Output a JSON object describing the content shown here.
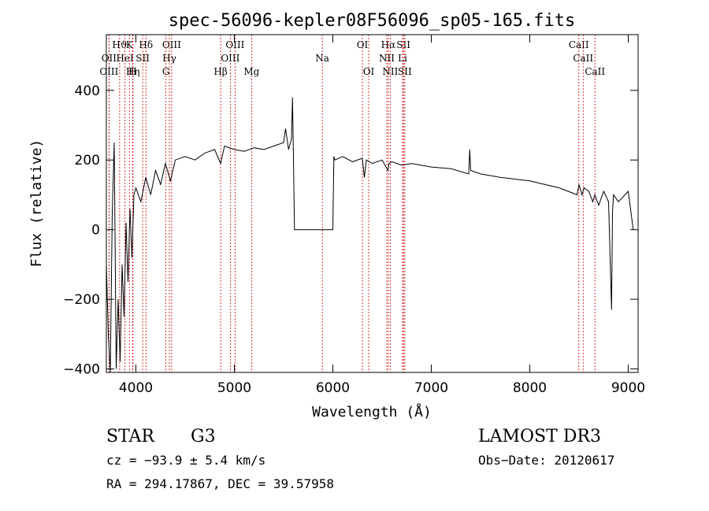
{
  "chart_data": {
    "type": "line",
    "title": "spec-56096-kepler08F56096_sp05-165.fits",
    "xlabel": "Wavelength (Å)",
    "ylabel": "Flux (relative)",
    "xlim": [
      3700,
      9100
    ],
    "ylim": [
      -410,
      560
    ],
    "xticks": [
      4000,
      5000,
      6000,
      7000,
      8000,
      9000
    ],
    "yticks": [
      -400,
      -200,
      0,
      200,
      400
    ],
    "series": [
      {
        "name": "spectrum",
        "x": [
          3700,
          3720,
          3740,
          3760,
          3780,
          3800,
          3820,
          3840,
          3860,
          3880,
          3900,
          3920,
          3940,
          3960,
          3980,
          4000,
          4050,
          4100,
          4150,
          4200,
          4250,
          4300,
          4350,
          4400,
          4500,
          4600,
          4700,
          4800,
          4860,
          4900,
          5000,
          5100,
          5200,
          5300,
          5400,
          5500,
          5520,
          5550,
          5580,
          5590,
          5600,
          5610,
          5800,
          6000,
          6010,
          6020,
          6100,
          6200,
          6300,
          6320,
          6340,
          6400,
          6500,
          6560,
          6570,
          6600,
          6700,
          6800,
          7000,
          7200,
          7380,
          7390,
          7400,
          7500,
          7700,
          8000,
          8300,
          8480,
          8500,
          8530,
          8550,
          8600,
          8640,
          8660,
          8700,
          8750,
          8800,
          8830,
          8840,
          8850,
          8900,
          9000,
          9050
        ],
        "y": [
          -100,
          -300,
          -410,
          50,
          250,
          -400,
          -200,
          -380,
          -100,
          -250,
          20,
          -150,
          60,
          -80,
          100,
          120,
          80,
          150,
          100,
          170,
          130,
          190,
          140,
          200,
          210,
          200,
          220,
          230,
          190,
          240,
          230,
          225,
          235,
          230,
          240,
          250,
          290,
          230,
          260,
          380,
          210,
          0,
          0,
          0,
          210,
          200,
          210,
          195,
          205,
          150,
          200,
          190,
          200,
          170,
          190,
          195,
          185,
          190,
          180,
          175,
          160,
          230,
          170,
          160,
          150,
          140,
          120,
          100,
          130,
          100,
          120,
          110,
          80,
          100,
          70,
          110,
          80,
          -230,
          50,
          100,
          80,
          110,
          0
        ]
      }
    ],
    "line_markers": [
      {
        "label": "Hϑ",
        "x": 3835,
        "row": 0
      },
      {
        "label": "K",
        "x": 3934,
        "row": 0
      },
      {
        "label": "Hδ",
        "x": 4102,
        "row": 0
      },
      {
        "label": "OIII",
        "x": 4363,
        "row": 0
      },
      {
        "label": "OIII",
        "x": 5007,
        "row": 0
      },
      {
        "label": "OI",
        "x": 6300,
        "row": 0
      },
      {
        "label": "Hα",
        "x": 6563,
        "row": 0
      },
      {
        "label": "SII",
        "x": 6717,
        "row": 0
      },
      {
        "label": "CaII",
        "x": 8498,
        "row": 0
      },
      {
        "label": "OII",
        "x": 3727,
        "row": 1
      },
      {
        "label": "HeI",
        "x": 3889,
        "row": 1
      },
      {
        "label": "SII",
        "x": 4069,
        "row": 1
      },
      {
        "label": "Hγ",
        "x": 4340,
        "row": 1
      },
      {
        "label": "OIII",
        "x": 4959,
        "row": 1
      },
      {
        "label": "Na",
        "x": 5893,
        "row": 1
      },
      {
        "label": "NII",
        "x": 6548,
        "row": 1
      },
      {
        "label": "Li",
        "x": 6708,
        "row": 1
      },
      {
        "label": "CaII",
        "x": 8542,
        "row": 1
      },
      {
        "label": "OIII",
        "x": 3727,
        "row": 2
      },
      {
        "label": "Hη",
        "x": 3970,
        "row": 2
      },
      {
        "label": "H",
        "x": 3968,
        "row": 2
      },
      {
        "label": "G",
        "x": 4305,
        "row": 2
      },
      {
        "label": "Hβ",
        "x": 4861,
        "row": 2
      },
      {
        "label": "Mg",
        "x": 5175,
        "row": 2
      },
      {
        "label": "OI",
        "x": 6364,
        "row": 2
      },
      {
        "label": "NII",
        "x": 6583,
        "row": 2
      },
      {
        "label": "SII",
        "x": 6731,
        "row": 2
      },
      {
        "label": "CaII",
        "x": 8662,
        "row": 2
      }
    ]
  },
  "info": {
    "class": "STAR",
    "subclass": "G3",
    "survey": "LAMOST DR3",
    "cz": "cz = −93.9 ± 5.4 km/s",
    "obs_date": "Obs−Date: 20120617",
    "coords": "RA = 294.17867, DEC =  39.57958"
  }
}
